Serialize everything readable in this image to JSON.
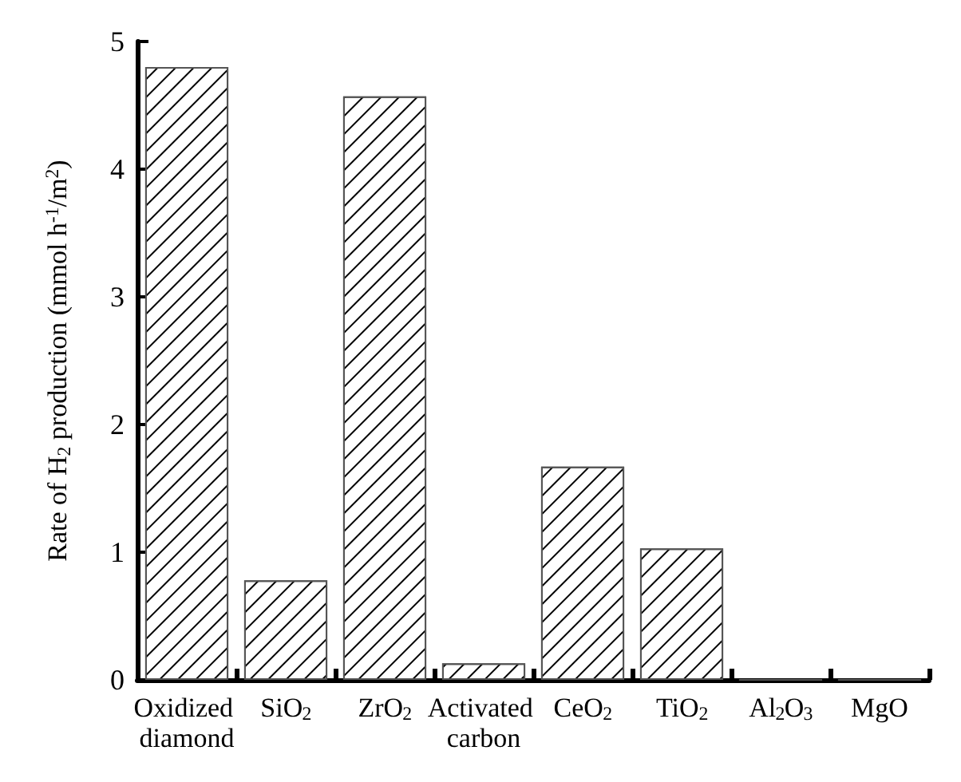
{
  "chart_data": {
    "type": "bar",
    "ylabel": "Rate of H$_{2}$ production (mmol h$^{-1}$/m$^{2}$)",
    "categories": [
      "Oxidized diamond",
      "SiO$_{2}$",
      "ZrO$_{2}$",
      "Activated carbon",
      "CeO$_{2}$",
      "TiO$_{2}$",
      "Al$_{2}$O$_{3}$",
      "MgO"
    ],
    "values": [
      4.8,
      0.78,
      4.57,
      0.13,
      1.67,
      1.03,
      0,
      0
    ],
    "ylim": [
      0,
      5
    ],
    "yticks": [
      0,
      1,
      2,
      3,
      4,
      5
    ]
  }
}
